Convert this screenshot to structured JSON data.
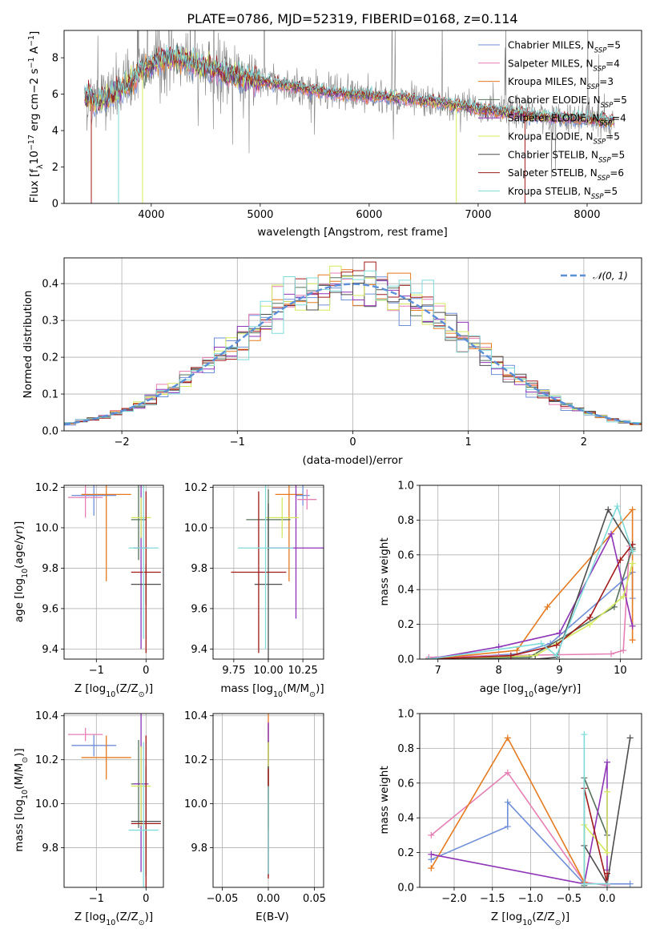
{
  "colors": {
    "chab_miles": "#6f8fd8",
    "salp_miles": "#e67fb4",
    "krou_miles": "#e57a20",
    "chab_elodie": "#55715a",
    "salp_elodie": "#8e34b7",
    "krou_elodie": "#d4e85f",
    "chab_stelib": "#4d4d4d",
    "salp_stelib": "#a11a1a",
    "krou_stelib": "#7fdada",
    "spectrum_data": "#808080",
    "grid": "#b0b0b0",
    "gauss": "#5b8fd8"
  },
  "figure_title": "PLATE=0786, MJD=52319, FIBERID=0168, z=0.114",
  "legend_spectrum": [
    {
      "label": "Chabrier MILES, N",
      "sub": "SSP",
      "tail": "=5",
      "color": "#6f8fd8"
    },
    {
      "label": "Salpeter MILES, N",
      "sub": "SSP",
      "tail": "=4",
      "color": "#e67fb4"
    },
    {
      "label": "Kroupa MILES, N",
      "sub": "SSP",
      "tail": "=3",
      "color": "#e57a20"
    },
    {
      "label": "Chabrier ELODIE, N",
      "sub": "SSP",
      "tail": "=5",
      "color": "#55715a"
    },
    {
      "label": "Salpeter ELODIE, N",
      "sub": "SSP",
      "tail": "=4",
      "color": "#8e34b7"
    },
    {
      "label": "Kroupa ELODIE, N",
      "sub": "SSP",
      "tail": "=5",
      "color": "#d4e85f"
    },
    {
      "label": "Chabrier STELIB, N",
      "sub": "SSP",
      "tail": "=5",
      "color": "#4d4d4d"
    },
    {
      "label": "Salpeter STELIB, N",
      "sub": "SSP",
      "tail": "=6",
      "color": "#a11a1a"
    },
    {
      "label": "Kroupa STELIB, N",
      "sub": "SSP",
      "tail": "=5",
      "color": "#7fdada"
    }
  ],
  "chart_data": [
    {
      "id": "spectrum",
      "type": "line",
      "title": "PLATE=0786, MJD=52319, FIBERID=0168, z=0.114",
      "xlabel": "wavelength [Angstrom, rest frame]",
      "ylabel_parts": [
        "Flux [f",
        "λ",
        "10",
        "−17",
        " erg cm",
        "−2",
        " s",
        "−1",
        " A",
        "−1",
        "]"
      ],
      "xlim": [
        3200,
        8500
      ],
      "ylim": [
        0,
        9.5
      ],
      "xticks": [
        4000,
        5000,
        6000,
        7000,
        8000
      ],
      "yticks": [
        0,
        2,
        4,
        6,
        8
      ],
      "continuum": [
        [
          3390,
          5.9
        ],
        [
          3500,
          5.6
        ],
        [
          3700,
          6.1
        ],
        [
          3900,
          7.2
        ],
        [
          4050,
          7.9
        ],
        [
          4200,
          8.0
        ],
        [
          4500,
          7.5
        ],
        [
          4800,
          6.9
        ],
        [
          5200,
          6.5
        ],
        [
          5600,
          6.1
        ],
        [
          6000,
          5.9
        ],
        [
          6400,
          5.7
        ],
        [
          6800,
          5.4
        ],
        [
          7200,
          5.0
        ],
        [
          7600,
          4.75
        ],
        [
          8000,
          4.6
        ],
        [
          8250,
          4.5
        ]
      ],
      "series": [
        "Chabrier MILES",
        "Salpeter MILES",
        "Kroupa MILES",
        "Chabrier ELODIE",
        "Salpeter ELODIE",
        "Kroupa ELODIE",
        "Chabrier STELIB",
        "Salpeter STELIB",
        "Kroupa STELIB"
      ],
      "spikes_to_zero": [
        {
          "series": 7,
          "x": 3450
        },
        {
          "series": 8,
          "x": 3700
        },
        {
          "series": 5,
          "x": 3920
        },
        {
          "series": 5,
          "x": 6800
        },
        {
          "series": 7,
          "x": 7430
        }
      ],
      "grid": false,
      "legend": "upper right"
    },
    {
      "id": "residuals",
      "type": "histogram",
      "xlabel": "(data-model)/error",
      "ylabel": "Normed distribution",
      "xlim": [
        -2.5,
        2.5
      ],
      "ylim": [
        0,
        0.47
      ],
      "xticks": [
        -2,
        -1,
        0,
        1,
        2
      ],
      "yticks": [
        0.0,
        0.1,
        0.2,
        0.3,
        0.4
      ],
      "bin_width": 0.1,
      "reference": {
        "name": "𝒩(0, 1)",
        "mean": 0,
        "sigma": 1
      },
      "grid": true,
      "legend": "upper right"
    },
    {
      "id": "age_vs_Z",
      "type": "errorbar",
      "xlabel_parts": [
        "Z [log",
        "10",
        "(Z/Z",
        "⊙",
        ")]"
      ],
      "ylabel_parts": [
        "age  [log",
        "10",
        "(age/yr)]"
      ],
      "xlim": [
        -1.65,
        0.35
      ],
      "ylim": [
        9.35,
        10.21
      ],
      "xticks": [
        -1,
        0
      ],
      "yticks": [
        9.4,
        9.6,
        9.8,
        10.0,
        10.2
      ],
      "points": [
        {
          "x": -1.05,
          "y": 10.16,
          "xerr": 0.45,
          "yerr": 0.1
        },
        {
          "x": -1.22,
          "y": 10.15,
          "xerr": 0.35,
          "yerr": 0.1
        },
        {
          "x": -0.8,
          "y": 10.165,
          "xerr": 0.5,
          "yerr": 0.43
        },
        {
          "x": -0.15,
          "y": 10.04,
          "xerr": 0.15,
          "yerr": 0.2
        },
        {
          "x": -0.1,
          "y": 9.9,
          "xerr": 0.15,
          "yerr": 0.5
        },
        {
          "x": -0.1,
          "y": 10.05,
          "xerr": 0.2,
          "yerr": 0.1
        },
        {
          "x": 0.0,
          "y": 9.72,
          "xerr": 0.3,
          "yerr": 0.1
        },
        {
          "x": 0.0,
          "y": 9.78,
          "xerr": 0.3,
          "yerr": 0.4
        },
        {
          "x": -0.05,
          "y": 9.9,
          "xerr": 0.3,
          "yerr": 0.45
        }
      ]
    },
    {
      "id": "age_vs_mass",
      "type": "errorbar",
      "xlabel_parts": [
        "mass [log",
        "10",
        "(M/M",
        "⊙",
        ")]"
      ],
      "ylabel": "",
      "xlim": [
        9.6,
        10.4
      ],
      "ylim": [
        9.35,
        10.21
      ],
      "xticks": [
        9.75,
        10.0,
        10.25
      ],
      "xtick_labels": [
        "9.75",
        "10.00",
        "10.25"
      ],
      "yticks": [
        9.4,
        9.6,
        9.8,
        10.0,
        10.2
      ],
      "points": [
        {
          "x": 10.25,
          "y": 10.16,
          "xerr": 0.05,
          "yerr": 0.05
        },
        {
          "x": 10.28,
          "y": 10.14,
          "xerr": 0.07,
          "yerr": 0.05
        },
        {
          "x": 10.15,
          "y": 10.165,
          "xerr": 0.1,
          "yerr": 0.43
        },
        {
          "x": 10.0,
          "y": 10.04,
          "xerr": 0.16,
          "yerr": 0.15
        },
        {
          "x": 10.2,
          "y": 9.9,
          "xerr": 0.2,
          "yerr": 0.35
        },
        {
          "x": 10.1,
          "y": 10.05,
          "xerr": 0.12,
          "yerr": 0.1
        },
        {
          "x": 10.0,
          "y": 9.72,
          "xerr": 0.1,
          "yerr": 0.4
        },
        {
          "x": 9.93,
          "y": 9.78,
          "xerr": 0.2,
          "yerr": 0.4
        },
        {
          "x": 9.98,
          "y": 9.9,
          "xerr": 0.2,
          "yerr": 0.5
        }
      ]
    },
    {
      "id": "mass_weight_vs_age",
      "type": "line",
      "xlabel_parts": [
        "age  [log",
        "10",
        "(age/yr)]"
      ],
      "ylabel": "mass weight",
      "xlim": [
        6.7,
        10.35
      ],
      "ylim": [
        0,
        1.0
      ],
      "xticks": [
        7,
        8,
        9,
        10
      ],
      "yticks": [
        0.0,
        0.2,
        0.4,
        0.6,
        0.8,
        1.0
      ],
      "grid": true,
      "series": [
        {
          "name": "Chabrier MILES",
          "x": [
            6.85,
            8.3,
            8.85,
            10.2,
            10.2
          ],
          "y": [
            0.0,
            0.03,
            0.09,
            0.5,
            0.35
          ]
        },
        {
          "name": "Salpeter MILES",
          "x": [
            6.85,
            8.0,
            9.85,
            10.05,
            10.15
          ],
          "y": [
            0.01,
            0.02,
            0.03,
            0.05,
            0.65
          ]
        },
        {
          "name": "Kroupa MILES",
          "x": [
            6.85,
            8.3,
            8.8,
            10.2,
            10.2
          ],
          "y": [
            0.0,
            0.05,
            0.3,
            0.86,
            0.11
          ]
        },
        {
          "name": "Chabrier ELODIE",
          "x": [
            6.85,
            8.5,
            9.9,
            10.2
          ],
          "y": [
            0.0,
            0.01,
            0.3,
            0.64
          ]
        },
        {
          "name": "Salpeter ELODIE",
          "x": [
            6.85,
            8.0,
            9.0,
            9.85,
            10.2
          ],
          "y": [
            0.0,
            0.07,
            0.15,
            0.72,
            0.19
          ]
        },
        {
          "name": "Kroupa ELODIE",
          "x": [
            6.85,
            8.6,
            9.5,
            10.05,
            10.2
          ],
          "y": [
            0.0,
            0.02,
            0.2,
            0.36,
            0.55
          ]
        },
        {
          "name": "Chabrier STELIB",
          "x": [
            6.85,
            8.6,
            8.95,
            9.8,
            10.2
          ],
          "y": [
            0.0,
            0.0,
            0.01,
            0.86,
            0.63
          ]
        },
        {
          "name": "Salpeter STELIB",
          "x": [
            6.85,
            8.2,
            8.95,
            9.5,
            10.0,
            10.2
          ],
          "y": [
            0.0,
            0.02,
            0.08,
            0.24,
            0.57,
            0.66
          ]
        },
        {
          "name": "Kroupa STELIB",
          "x": [
            6.85,
            8.7,
            8.95,
            9.95,
            10.2
          ],
          "y": [
            0.0,
            0.09,
            0.02,
            0.88,
            0.62
          ]
        }
      ]
    },
    {
      "id": "mass_vs_Z",
      "type": "errorbar",
      "xlabel_parts": [
        "Z [log",
        "10",
        "(Z/Z",
        "⊙",
        ")]"
      ],
      "ylabel_parts": [
        "mass [log",
        "10",
        "(M/M",
        "⊙",
        ")]"
      ],
      "xlim": [
        -1.65,
        0.35
      ],
      "ylim": [
        9.62,
        10.41
      ],
      "xticks": [
        -1,
        0
      ],
      "yticks": [
        9.8,
        10.0,
        10.2,
        10.4
      ],
      "points": [
        {
          "x": -1.05,
          "y": 10.265,
          "xerr": 0.45,
          "yerr": 0.05
        },
        {
          "x": -1.22,
          "y": 10.315,
          "xerr": 0.35,
          "yerr": 0.03
        },
        {
          "x": -0.8,
          "y": 10.21,
          "xerr": 0.5,
          "yerr": 0.1
        },
        {
          "x": -0.15,
          "y": 10.09,
          "xerr": 0.15,
          "yerr": 0.2
        },
        {
          "x": -0.1,
          "y": 10.09,
          "xerr": 0.15,
          "yerr": 0.4
        },
        {
          "x": -0.1,
          "y": 10.08,
          "xerr": 0.2,
          "yerr": 0.18
        },
        {
          "x": 0.0,
          "y": 9.92,
          "xerr": 0.3,
          "yerr": 0.25
        },
        {
          "x": 0.0,
          "y": 9.91,
          "xerr": 0.3,
          "yerr": 0.4
        },
        {
          "x": -0.05,
          "y": 9.88,
          "xerr": 0.3,
          "yerr": 0.4
        }
      ]
    },
    {
      "id": "mass_vs_ebv",
      "type": "errorbar",
      "xlabel": "E(B-V)",
      "xlim": [
        -0.06,
        0.06
      ],
      "ylim": [
        9.62,
        10.41
      ],
      "xticks": [
        -0.05,
        0.0,
        0.05
      ],
      "xtick_labels": [
        "−0.05",
        "0.00",
        "0.05"
      ],
      "yticks": [
        9.8,
        10.0,
        10.2,
        10.4
      ],
      "points": [
        {
          "x": 0.0,
          "y": 10.265,
          "xerr": 0.0,
          "yerr": 0.1
        },
        {
          "x": 0.0,
          "y": 10.315,
          "xerr": 0.0,
          "yerr": 0.05
        },
        {
          "x": 0.0,
          "y": 10.21,
          "xerr": 0.0,
          "yerr": 0.2
        },
        {
          "x": 0.0,
          "y": 10.09,
          "xerr": 0.0,
          "yerr": 0.2
        },
        {
          "x": 0.0,
          "y": 10.2,
          "xerr": 0.0,
          "yerr": 0.17
        },
        {
          "x": 0.0,
          "y": 10.08,
          "xerr": 0.0,
          "yerr": 0.2
        },
        {
          "x": 0.0,
          "y": 9.92,
          "xerr": 0.0,
          "yerr": 0.25
        },
        {
          "x": 0.0,
          "y": 9.91,
          "xerr": 0.0,
          "yerr": 0.25
        },
        {
          "x": 0.0,
          "y": 9.88,
          "xerr": 0.0,
          "yerr": 0.2
        }
      ]
    },
    {
      "id": "mass_weight_vs_Z",
      "type": "line",
      "xlabel_parts": [
        "Z [log",
        "10",
        "(Z/Z",
        "⊙",
        ")]"
      ],
      "ylabel": "mass weight",
      "xlim": [
        -2.45,
        0.45
      ],
      "ylim": [
        0,
        1.0
      ],
      "xticks": [
        -2.0,
        -1.5,
        -1.0,
        -0.5,
        0.0
      ],
      "xtick_labels": [
        "−2.0",
        "−1.5",
        "−1.0",
        "−0.5",
        "0.0"
      ],
      "yticks": [
        0.0,
        0.2,
        0.4,
        0.6,
        0.8,
        1.0
      ],
      "grid": true,
      "series": [
        {
          "name": "Chabrier MILES",
          "x": [
            -2.3,
            -1.3,
            -1.3,
            -0.3,
            0.3
          ],
          "y": [
            0.16,
            0.35,
            0.49,
            0.02,
            0.02
          ]
        },
        {
          "name": "Salpeter MILES",
          "x": [
            -2.3,
            -1.3,
            -0.3,
            0.0
          ],
          "y": [
            0.3,
            0.66,
            0.03,
            0.01
          ]
        },
        {
          "name": "Kroupa MILES",
          "x": [
            -2.3,
            -1.3,
            -0.3
          ],
          "y": [
            0.11,
            0.86,
            0.03
          ]
        },
        {
          "name": "Chabrier ELODIE",
          "x": [
            -0.3,
            -0.3,
            0.0
          ],
          "y": [
            0.01,
            0.63,
            0.3
          ]
        },
        {
          "name": "Salpeter ELODIE",
          "x": [
            -2.3,
            -0.3,
            0.0,
            0.0
          ],
          "y": [
            0.19,
            0.02,
            0.72,
            0.1
          ]
        },
        {
          "name": "Kroupa ELODIE",
          "x": [
            -0.3,
            -0.3,
            0.0,
            0.0
          ],
          "y": [
            0.02,
            0.36,
            0.2,
            0.55
          ]
        },
        {
          "name": "Chabrier STELIB",
          "x": [
            -0.3,
            0.0,
            0.3
          ],
          "y": [
            0.24,
            0.02,
            0.86
          ]
        },
        {
          "name": "Salpeter STELIB",
          "x": [
            -0.3,
            0.0,
            0.0
          ],
          "y": [
            0.57,
            0.02,
            0.08
          ]
        },
        {
          "name": "Kroupa STELIB",
          "x": [
            -0.3,
            -0.3,
            0.0
          ],
          "y": [
            0.88,
            0.02,
            0.02
          ]
        }
      ]
    }
  ]
}
